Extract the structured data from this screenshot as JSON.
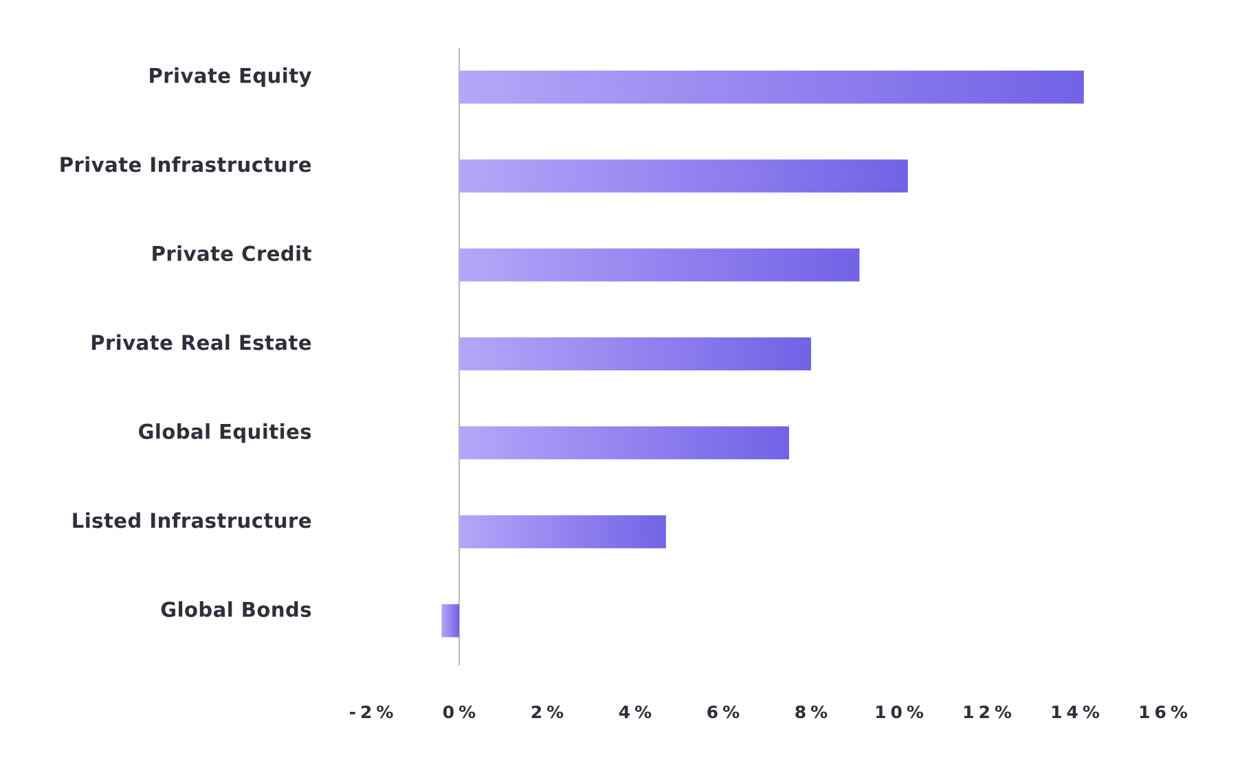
{
  "chart_data": {
    "type": "hbar",
    "categories": [
      "Private Equity",
      "Private Infrastructure",
      "Private Credit",
      "Private Real Estate",
      "Global Equities",
      "Listed Infrastructure",
      "Global Bonds"
    ],
    "values": [
      14.2,
      10.2,
      9.1,
      8.0,
      7.5,
      4.7,
      -0.4
    ],
    "gradient": [
      "#b6a6f9",
      "#7262e6"
    ],
    "xlim": [
      -2,
      16
    ],
    "xticks": [
      {
        "value": -2,
        "label": "-2%"
      },
      {
        "value": 0,
        "label": "0%"
      },
      {
        "value": 2,
        "label": "2%"
      },
      {
        "value": 4,
        "label": "4%"
      },
      {
        "value": 6,
        "label": "6%"
      },
      {
        "value": 8,
        "label": "8%"
      },
      {
        "value": 10,
        "label": "10%"
      },
      {
        "value": 12,
        "label": "12%"
      },
      {
        "value": 14,
        "label": "14%"
      },
      {
        "value": 16,
        "label": "16%"
      }
    ]
  }
}
